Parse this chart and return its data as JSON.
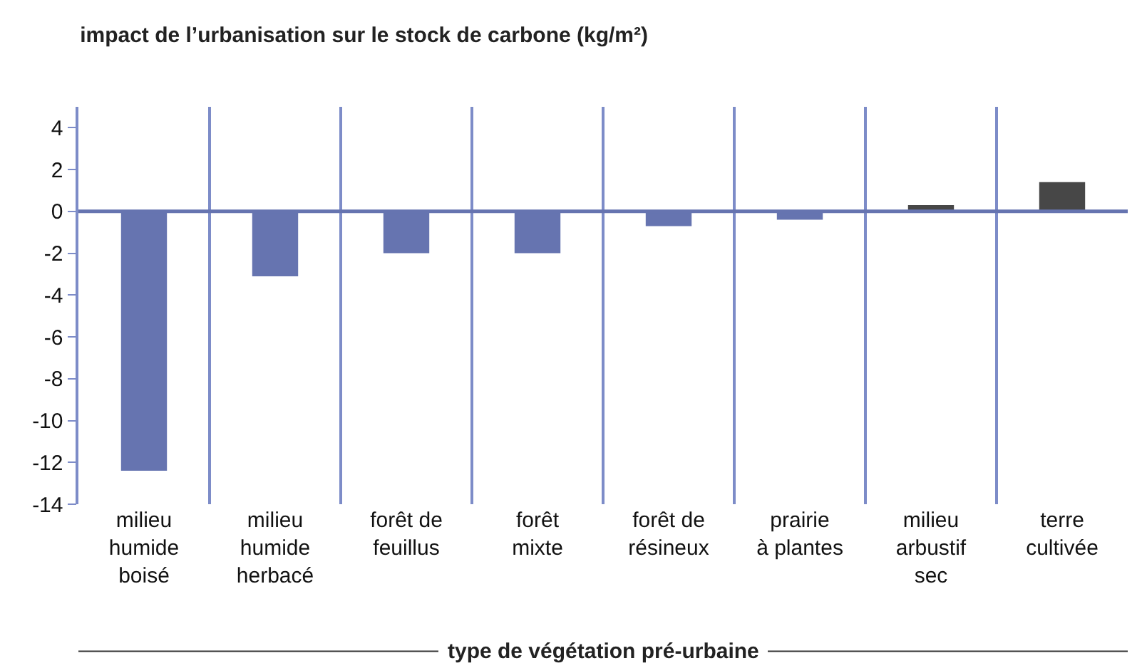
{
  "chart_data": {
    "type": "bar",
    "title": "impact de l’urbanisation sur le stock de carbone (kg/m²)",
    "xlabel": "type de végétation pré-urbaine",
    "categories": [
      "milieu\nhumide\nboisé",
      "milieu\nhumide\nherbacé",
      "forêt de\nfeuillus",
      "forêt\nmixte",
      "forêt de\nrésineux",
      "prairie\nà plantes",
      "milieu\narbustif\nsec",
      "terre\ncultivée"
    ],
    "values": [
      -12.4,
      -3.1,
      -2.0,
      -2.0,
      -0.7,
      -0.4,
      0.3,
      1.4
    ],
    "colors": [
      "#6674b0",
      "#6674b0",
      "#6674b0",
      "#6674b0",
      "#6674b0",
      "#6674b0",
      "#474747",
      "#474747"
    ],
    "ylim": [
      -14,
      5
    ],
    "yticks": [
      -14,
      -12,
      -10,
      -8,
      -6,
      -4,
      -2,
      0,
      2,
      4
    ],
    "grid": "x",
    "ref_lines": [
      {
        "axis": "y",
        "value": 0,
        "color": "#6674b0"
      }
    ]
  }
}
